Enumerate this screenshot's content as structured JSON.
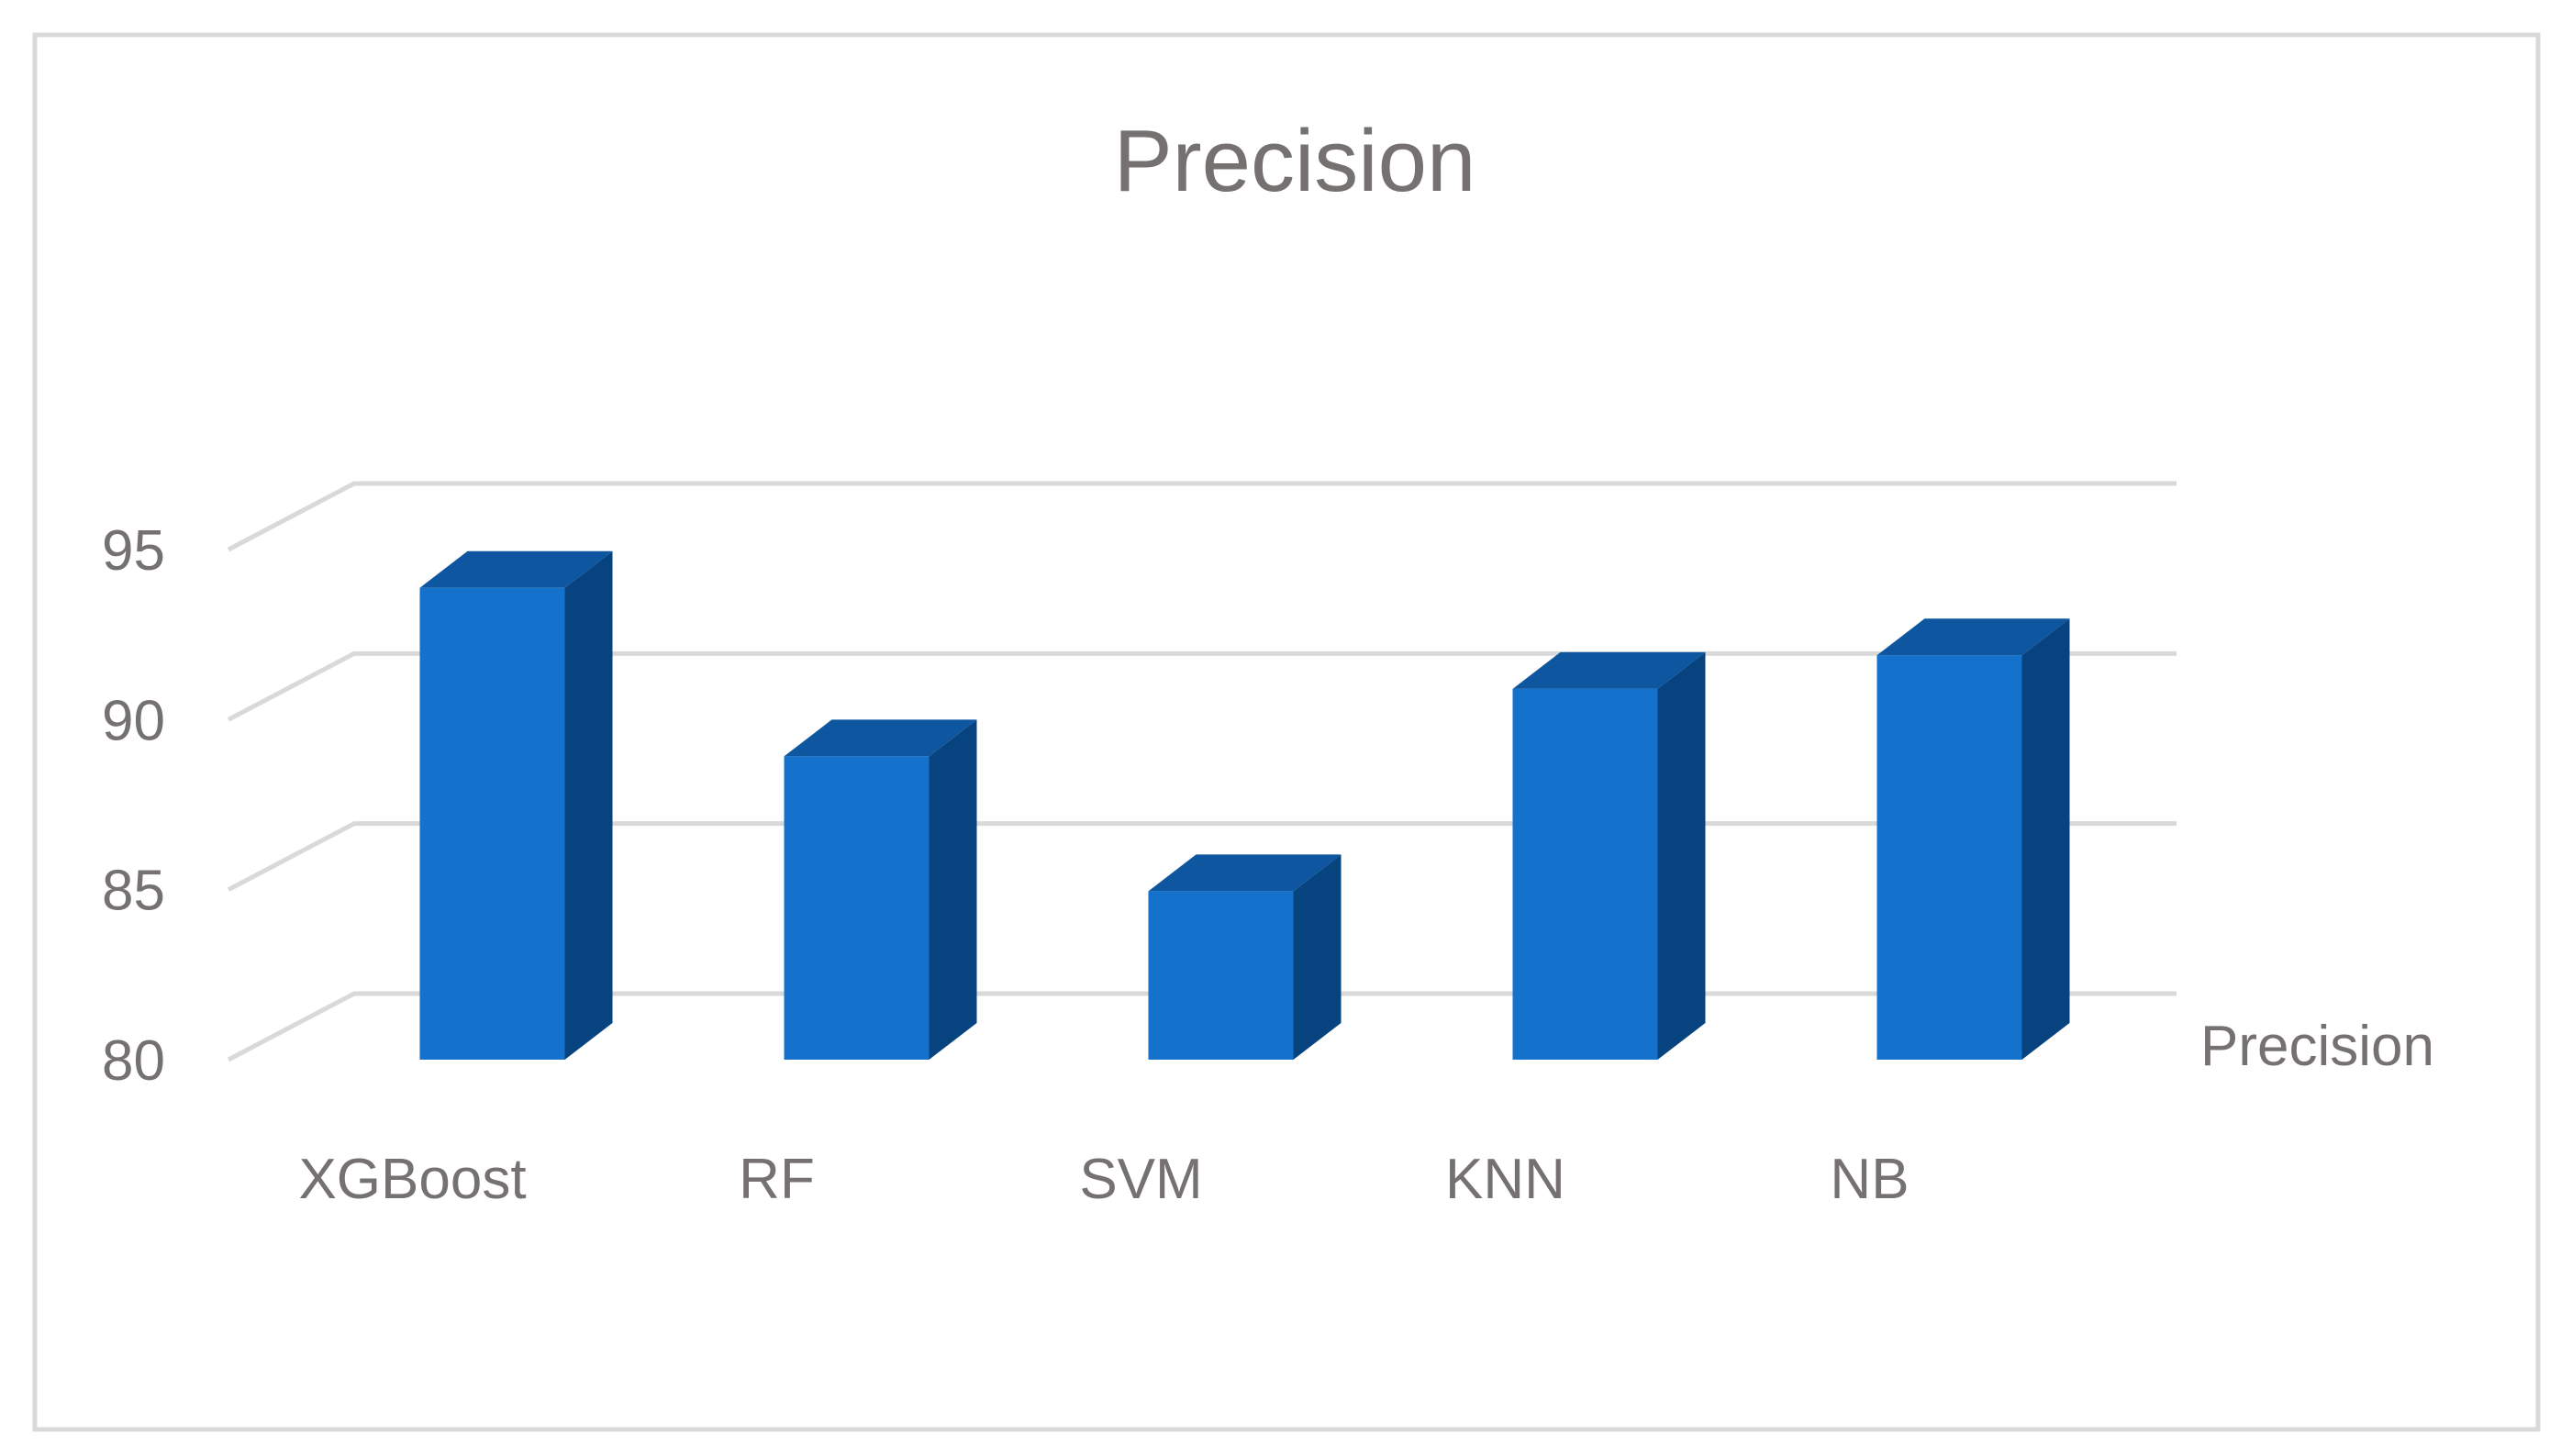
{
  "chart_data": {
    "type": "bar",
    "title": "Precision",
    "categories": [
      "XGBoost",
      "RF",
      "SVM",
      "KNN",
      "NB"
    ],
    "series": [
      {
        "name": "Precision",
        "values": [
          94,
          89,
          85,
          91,
          92
        ]
      }
    ],
    "ylim": [
      80,
      95
    ],
    "yticks": [
      80,
      85,
      90,
      95
    ],
    "grid": true,
    "legend": "right",
    "style": "3d-column",
    "colors": {
      "bar_front": "#1572CC",
      "bar_side": "#07447F",
      "bar_top": "#0E56A0",
      "gridline": "#D9D9D9",
      "text": "#767171",
      "border": "#D9D9D9"
    }
  }
}
